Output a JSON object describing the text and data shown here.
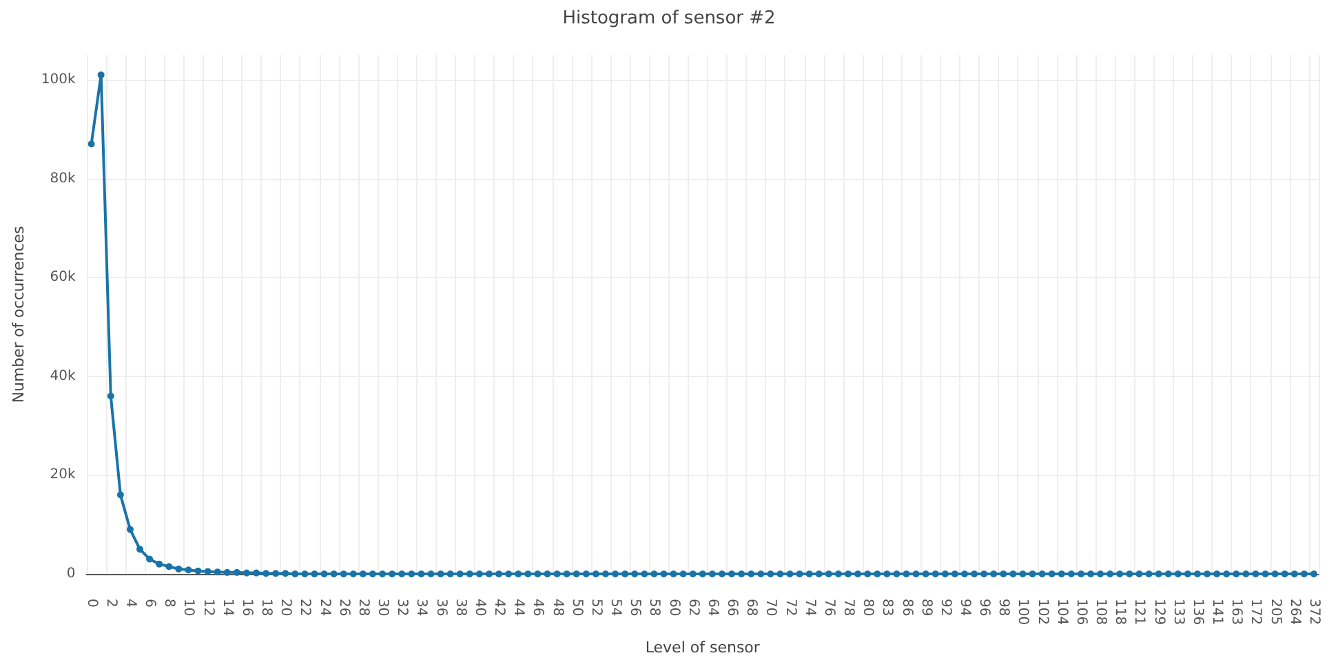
{
  "chart_data": {
    "type": "line",
    "title": "Histogram of sensor #2",
    "xlabel": "Level of sensor",
    "ylabel": "Number of occurrences",
    "categories": [
      "0",
      null,
      "2",
      null,
      "4",
      null,
      "6",
      null,
      "8",
      null,
      "10",
      null,
      "12",
      null,
      "14",
      null,
      "16",
      null,
      "18",
      null,
      "20",
      null,
      "22",
      null,
      "24",
      null,
      "26",
      null,
      "28",
      null,
      "30",
      null,
      "32",
      null,
      "34",
      null,
      "36",
      null,
      "38",
      null,
      "40",
      null,
      "42",
      null,
      "44",
      null,
      "46",
      null,
      "48",
      null,
      "50",
      null,
      "52",
      null,
      "54",
      null,
      "56",
      null,
      "58",
      null,
      "60",
      null,
      "62",
      null,
      "64",
      null,
      "66",
      null,
      "68",
      null,
      "70",
      null,
      "72",
      null,
      "74",
      null,
      "76",
      null,
      "78",
      null,
      "80",
      null,
      "83",
      null,
      "86",
      null,
      "89",
      null,
      "92",
      null,
      "94",
      null,
      "96",
      null,
      "98",
      null,
      "100",
      null,
      "102",
      null,
      "104",
      null,
      "106",
      null,
      "108",
      null,
      "118",
      null,
      "121",
      null,
      "129",
      null,
      "133",
      null,
      "136",
      null,
      "141",
      null,
      "163",
      null,
      "172",
      null,
      "205",
      null,
      "264",
      null,
      "372"
    ],
    "series": [
      {
        "color": "#1a73a8",
        "values": [
          87000,
          101000,
          36000,
          16000,
          9000,
          5000,
          3000,
          2000,
          1500,
          1000,
          800,
          600,
          500,
          400,
          300,
          300,
          200,
          200,
          100,
          100,
          100,
          0,
          0,
          0,
          0,
          0,
          0,
          0,
          0,
          0,
          0,
          0,
          0,
          0,
          0,
          0,
          0,
          0,
          0,
          0,
          0,
          0,
          0,
          0,
          0,
          0,
          0,
          0,
          0,
          0,
          0,
          0,
          0,
          0,
          0,
          0,
          0,
          0,
          0,
          0,
          0,
          0,
          0,
          0,
          0,
          0,
          0,
          0,
          0,
          0,
          0,
          0,
          0,
          0,
          0,
          0,
          0,
          0,
          0,
          0,
          0,
          0,
          0,
          0,
          0,
          0,
          0,
          0,
          0,
          0,
          0,
          0,
          0,
          0,
          0,
          0,
          0,
          0,
          0,
          0,
          0,
          0,
          0,
          0,
          0,
          0,
          0,
          0,
          0,
          0,
          0,
          0,
          0,
          0,
          0,
          0,
          0,
          0,
          0,
          0,
          0,
          0,
          0,
          0,
          0,
          0,
          0
        ]
      }
    ],
    "ylim": [
      0,
      105000
    ],
    "yticks": [
      {
        "value": 0,
        "label": "0"
      },
      {
        "value": 20000,
        "label": "20k"
      },
      {
        "value": 40000,
        "label": "40k"
      },
      {
        "value": 60000,
        "label": "60k"
      },
      {
        "value": 80000,
        "label": "80k"
      },
      {
        "value": 100000,
        "label": "100k"
      }
    ],
    "grid": true,
    "marker": "circle",
    "line_style": "solid"
  }
}
